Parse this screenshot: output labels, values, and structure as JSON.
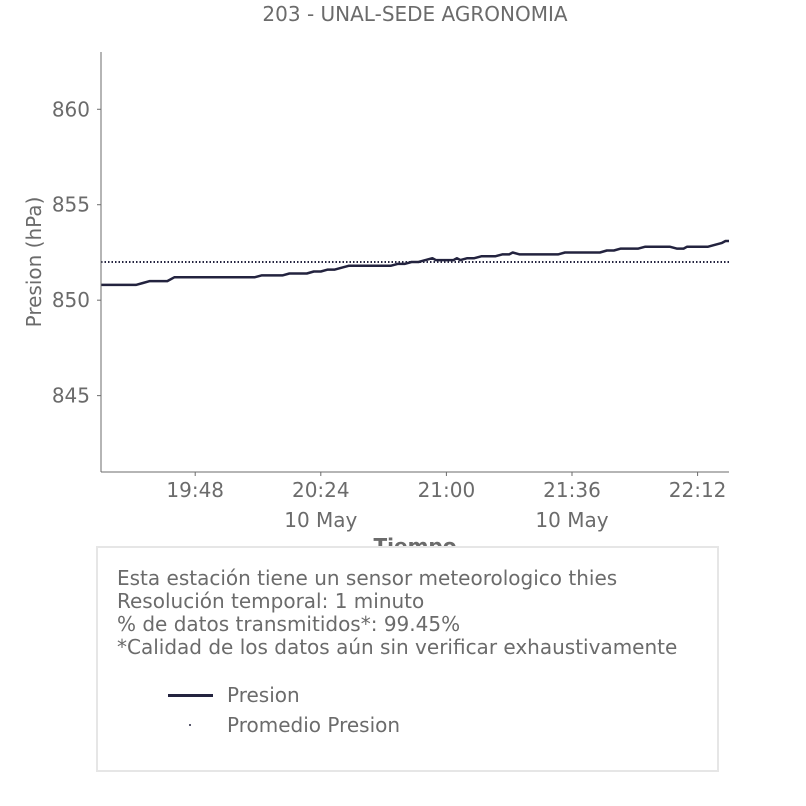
{
  "chart_data": {
    "type": "line",
    "title": "203 - UNAL-SEDE AGRONOMIA",
    "xlabel": "Tiempo",
    "ylabel": "Presion (hPa)",
    "xlim": [
      "19:21",
      "22:21"
    ],
    "ylim": [
      841.0,
      863.0
    ],
    "x_ticks": [
      "19:48",
      "20:24",
      "21:00",
      "21:36",
      "22:12"
    ],
    "x_subticks": [
      {
        "at": "20:24",
        "label": "10 May"
      },
      {
        "at": "21:36",
        "label": "10 May"
      }
    ],
    "y_ticks": [
      845,
      850,
      855,
      860
    ],
    "series": [
      {
        "name": "Presion",
        "style": "solid",
        "color": "#23233f",
        "points": [
          [
            "19:21",
            850.8
          ],
          [
            "19:31",
            850.8
          ],
          [
            "19:33",
            850.9
          ],
          [
            "19:35",
            851.0
          ],
          [
            "19:40",
            851.0
          ],
          [
            "19:42",
            851.2
          ],
          [
            "19:48",
            851.2
          ],
          [
            "20:05",
            851.2
          ],
          [
            "20:07",
            851.3
          ],
          [
            "20:13",
            851.3
          ],
          [
            "20:15",
            851.4
          ],
          [
            "20:20",
            851.4
          ],
          [
            "20:22",
            851.5
          ],
          [
            "20:24",
            851.5
          ],
          [
            "20:26",
            851.6
          ],
          [
            "20:28",
            851.6
          ],
          [
            "20:30",
            851.7
          ],
          [
            "20:32",
            851.8
          ],
          [
            "20:44",
            851.8
          ],
          [
            "20:46",
            851.9
          ],
          [
            "20:48",
            851.9
          ],
          [
            "20:50",
            852.0
          ],
          [
            "20:52",
            852.0
          ],
          [
            "20:54",
            852.1
          ],
          [
            "20:56",
            852.2
          ],
          [
            "20:57",
            852.1
          ],
          [
            "21:02",
            852.1
          ],
          [
            "21:03",
            852.2
          ],
          [
            "21:04",
            852.1
          ],
          [
            "21:06",
            852.2
          ],
          [
            "21:08",
            852.2
          ],
          [
            "21:10",
            852.3
          ],
          [
            "21:14",
            852.3
          ],
          [
            "21:16",
            852.4
          ],
          [
            "21:18",
            852.4
          ],
          [
            "21:19",
            852.5
          ],
          [
            "21:21",
            852.4
          ],
          [
            "21:32",
            852.4
          ],
          [
            "21:34",
            852.5
          ],
          [
            "21:38",
            852.5
          ],
          [
            "21:44",
            852.5
          ],
          [
            "21:46",
            852.6
          ],
          [
            "21:48",
            852.6
          ],
          [
            "21:50",
            852.7
          ],
          [
            "21:55",
            852.7
          ],
          [
            "21:57",
            852.8
          ],
          [
            "22:04",
            852.8
          ],
          [
            "22:06",
            852.7
          ],
          [
            "22:08",
            852.7
          ],
          [
            "22:09",
            852.8
          ],
          [
            "22:15",
            852.8
          ],
          [
            "22:17",
            852.9
          ],
          [
            "22:19",
            853.0
          ],
          [
            "22:20",
            853.1
          ],
          [
            "22:21",
            853.1
          ]
        ]
      },
      {
        "name": "Promedio Presion",
        "style": "dotted",
        "color": "#23233f",
        "points": [
          [
            "19:21",
            852.0
          ],
          [
            "22:21",
            852.0
          ]
        ]
      }
    ]
  },
  "info": {
    "lines": [
      "Esta estación tiene un sensor meteorologico thies",
      "Resolución temporal: 1 minuto",
      "% de datos transmitidos*: 99.45%",
      "*Calidad de los datos aún sin verificar exhaustivamente"
    ]
  }
}
